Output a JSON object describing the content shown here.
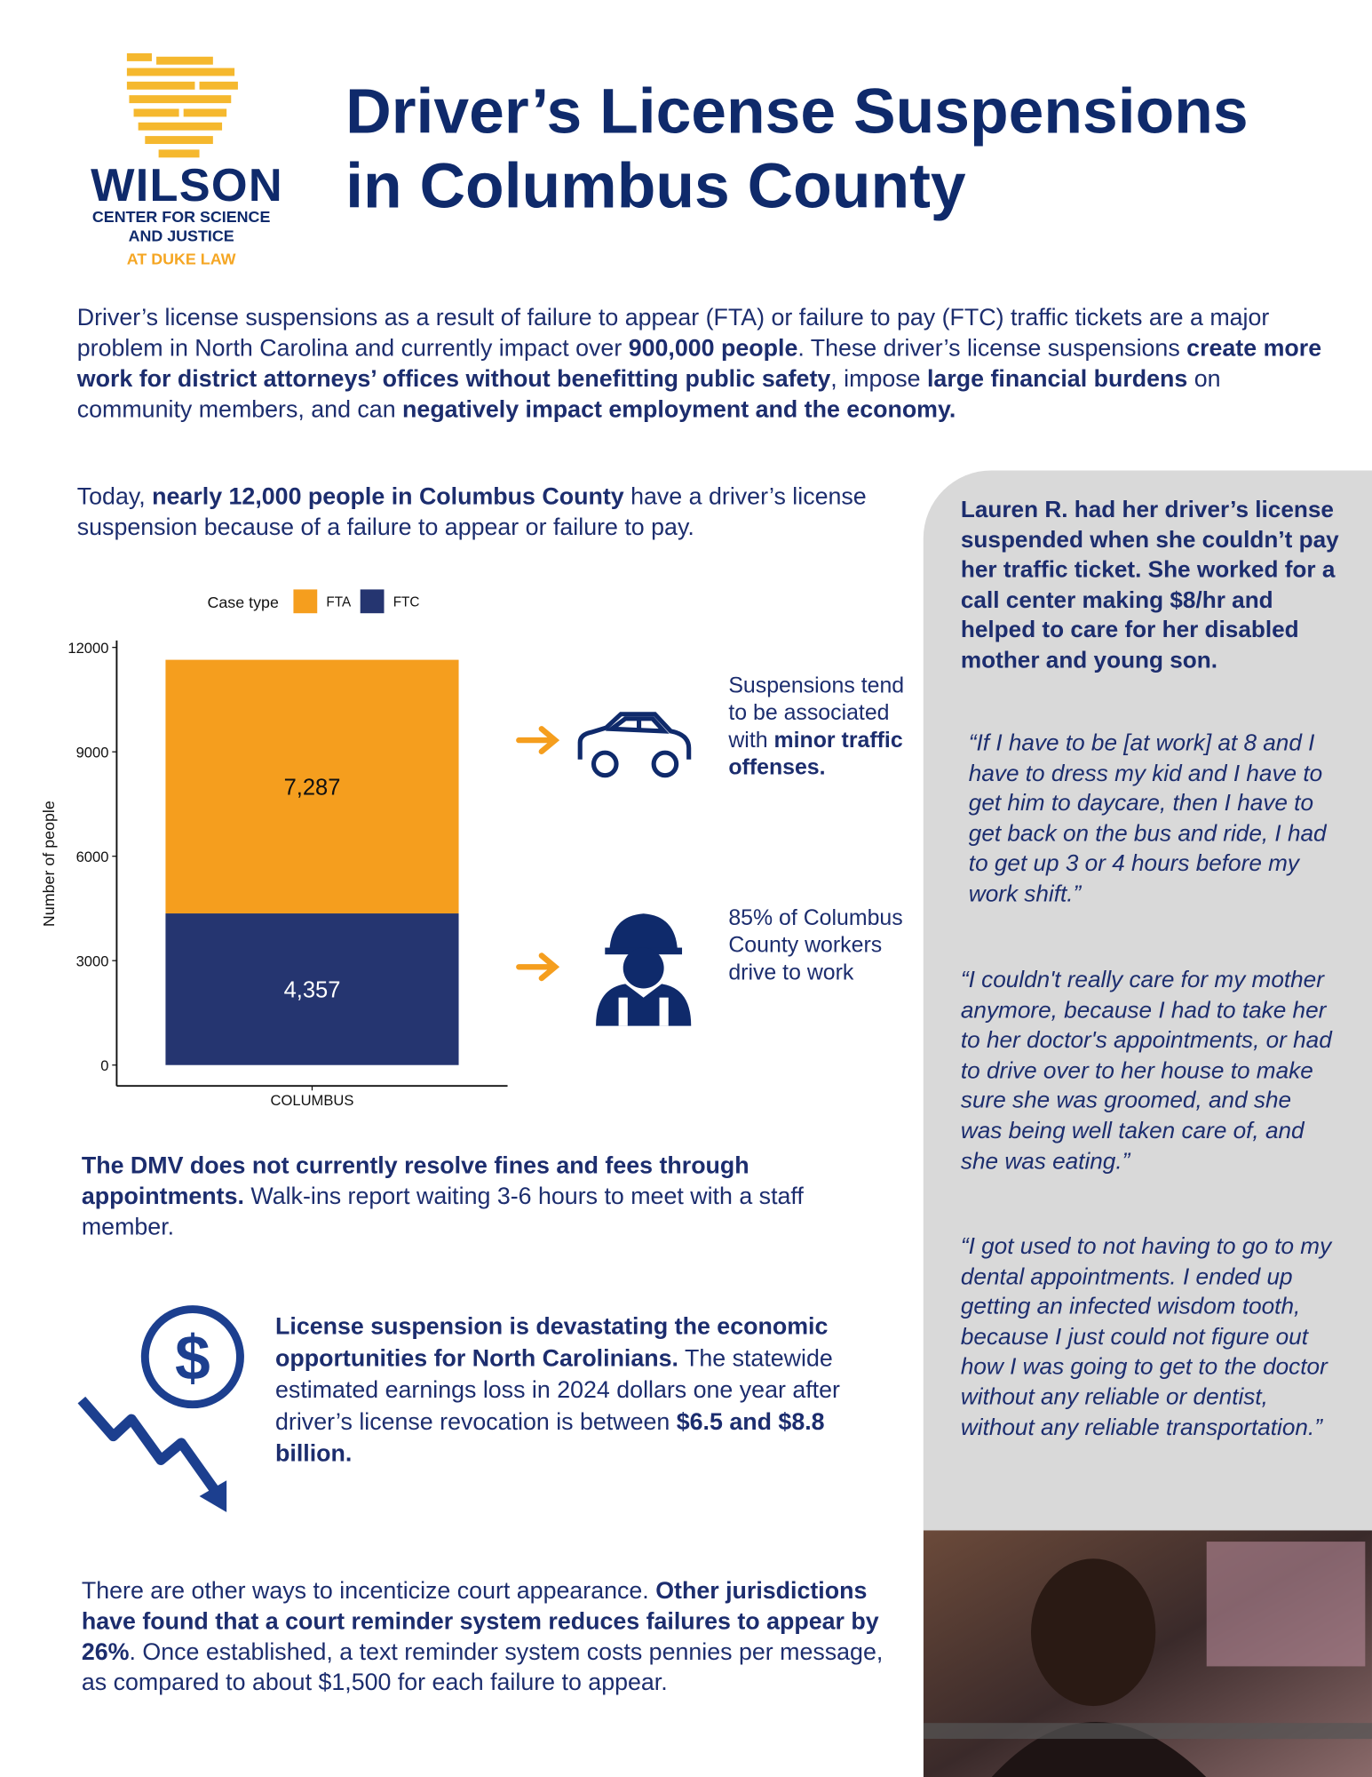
{
  "header": {
    "logo": {
      "name": "WILSON",
      "line1": "CENTER FOR SCIENCE",
      "line2": "AND JUSTICE",
      "line3": "AT DUKE LAW"
    },
    "title": [
      "Driver’s License Suspensions",
      "in Columbus County"
    ]
  },
  "intro": [
    "Driver’s license suspensions as a result of failure to appear (FTA) or failure to pay (FTC) traffic tickets are a major problem in North Carolina and currently impact over ",
    {
      "text": "900,000 people",
      "bold": true
    },
    ". These driver’s license suspensions ",
    {
      "text": "create more work for district attorneys’ offices without benefitting public safety",
      "bold": true
    },
    ", impose ",
    {
      "text": "large financial burdens",
      "bold": true
    },
    " on community members, and can ",
    {
      "text": "negatively impact employment and the economy.",
      "bold": true
    }
  ],
  "today": [
    "Today, ",
    {
      "text": "nearly 12,000 people in Columbus County",
      "bold": true
    },
    " have a driver’s license suspension because of a failure to appear or failure to pay."
  ],
  "chart_data": {
    "type": "bar",
    "stacked": true,
    "legend_title": "Case type",
    "legend_position": "top",
    "y_label": "Number of people",
    "categories": [
      "COLUMBUS"
    ],
    "series": [
      {
        "name": "FTA",
        "color": "#f59e1e",
        "label_color": "#111111",
        "values": [
          7287
        ],
        "value_labels": [
          "7,287"
        ]
      },
      {
        "name": "FTC",
        "color": "#253570",
        "label_color": "#ffffff",
        "values": [
          4357
        ],
        "value_labels": [
          "4,357"
        ]
      }
    ],
    "ylim": [
      -600,
      12200
    ],
    "yticks": [
      0,
      3000,
      6000,
      9000,
      12000
    ],
    "grid": false
  },
  "callouts": [
    [
      "Suspensions tend to be associated with ",
      {
        "text": "minor traffic offenses.",
        "bold": true
      }
    ],
    [
      "85% of Columbus County workers drive to work"
    ]
  ],
  "dmv": [
    {
      "text": "The DMV does not currently resolve fines and fees through appointments.",
      "bold": true
    },
    " Walk-ins report waiting 3-6 hours to meet with a staff member."
  ],
  "economic": [
    {
      "text": "License suspension is devastating the economic opportunities for North Carolinians.",
      "bold": true
    },
    " The statewide estimated earnings loss in 2024 dollars one year after driver’s license revocation is between ",
    {
      "text": "$6.5 and $8.8 billion.",
      "bold": true
    }
  ],
  "reminder": [
    "There are other ways to incenticize court appearance. ",
    {
      "text": "Other jurisdictions have found that a court reminder system reduces failures to appear by 26%",
      "bold": true
    },
    ". Once established, a text reminder system costs pennies per message, as compared to about $1,500 for each failure to appear."
  ],
  "story": {
    "intro": "Lauren R. had her driver’s license suspended when she couldn’t pay her traffic ticket. She worked for a call center making $8/hr and helped to care for her disabled mother and young son.",
    "quotes": [
      "“If I have to be [at work] at 8 and I have to dress my kid and I have to get him to daycare, then I have to get back on the bus and ride, I had to get up 3 or 4 hours before my work shift.”",
      "“I couldn't really care for my mother anymore, because I had to take her to her doctor's appointments, or had to drive over to her house to make sure she was groomed, and she was being well taken care of, and she was eating.”",
      "“I got used to not having to go to my dental appointments. I ended up getting an infected wisdom tooth, because I just could not figure out how I was going to get to the doctor without any reliable or dentist, without any reliable transportation.”"
    ]
  }
}
